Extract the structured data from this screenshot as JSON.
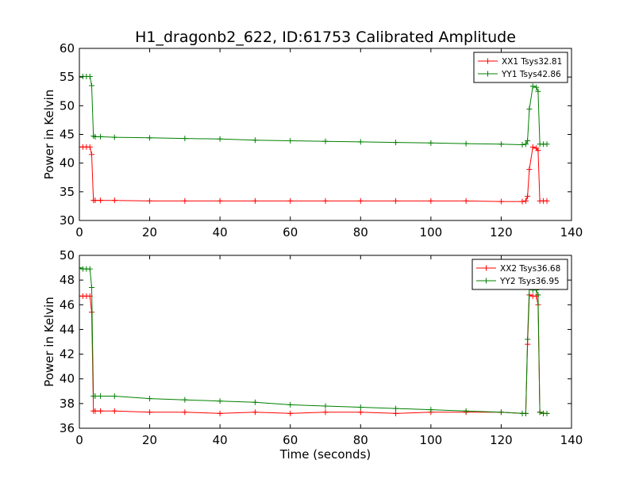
{
  "figure": {
    "title": "H1_dragonb2_622, ID:61753 Calibrated Amplitude"
  },
  "chart_data": [
    {
      "type": "line",
      "title": "H1_dragonb2_622, ID:61753 Calibrated Amplitude",
      "xlabel": "",
      "ylabel": "Power in Kelvin",
      "xlim": [
        0,
        140
      ],
      "ylim": [
        30,
        60
      ],
      "xticks": [
        0,
        20,
        40,
        60,
        80,
        100,
        120,
        140
      ],
      "yticks": [
        30,
        35,
        40,
        45,
        50,
        55,
        60
      ],
      "grid": false,
      "legend_position": "top-right",
      "series": [
        {
          "name": "XX1 Tsys32.81",
          "color": "#ff0000",
          "marker": "plus",
          "x": [
            0,
            1,
            2,
            3,
            3.5,
            4,
            4.5,
            6,
            10,
            20,
            30,
            40,
            50,
            60,
            70,
            80,
            90,
            100,
            110,
            120,
            126,
            127,
            127.5,
            128,
            129,
            130,
            130.5,
            131,
            132,
            133
          ],
          "y": [
            42.8,
            42.8,
            42.8,
            42.8,
            41.5,
            33.5,
            33.5,
            33.5,
            33.5,
            33.4,
            33.4,
            33.4,
            33.4,
            33.4,
            33.4,
            33.4,
            33.4,
            33.4,
            33.4,
            33.3,
            33.3,
            33.4,
            34.2,
            38.9,
            42.8,
            42.6,
            42.2,
            33.4,
            33.4,
            33.4
          ]
        },
        {
          "name": "YY1 Tsys42.86",
          "color": "#008000",
          "marker": "plus",
          "x": [
            0,
            1,
            2,
            3,
            3.5,
            4,
            4.5,
            6,
            10,
            20,
            30,
            40,
            50,
            60,
            70,
            80,
            90,
            100,
            110,
            120,
            126,
            127,
            127.5,
            128,
            129,
            130,
            130.5,
            131,
            132,
            133
          ],
          "y": [
            55.1,
            55.1,
            55.1,
            55.1,
            53.5,
            44.7,
            44.6,
            44.6,
            44.5,
            44.4,
            44.3,
            44.2,
            44.0,
            43.9,
            43.8,
            43.7,
            43.6,
            43.5,
            43.4,
            43.3,
            43.2,
            43.3,
            43.9,
            49.4,
            53.4,
            53.2,
            52.5,
            43.3,
            43.3,
            43.3
          ]
        }
      ]
    },
    {
      "type": "line",
      "title": "",
      "xlabel": "Time (seconds)",
      "ylabel": "Power in Kelvin",
      "xlim": [
        0,
        140
      ],
      "ylim": [
        36,
        50
      ],
      "xticks": [
        0,
        20,
        40,
        60,
        80,
        100,
        120,
        140
      ],
      "yticks": [
        36,
        38,
        40,
        42,
        44,
        46,
        48,
        50
      ],
      "grid": false,
      "legend_position": "top-right",
      "series": [
        {
          "name": "XX2 Tsys36.68",
          "color": "#ff0000",
          "marker": "plus",
          "x": [
            0,
            1,
            2,
            3,
            3.5,
            4,
            4.5,
            6,
            10,
            20,
            30,
            40,
            50,
            60,
            70,
            80,
            90,
            100,
            110,
            120,
            126,
            127,
            127.5,
            128,
            129,
            130,
            130.5,
            131,
            132,
            133
          ],
          "y": [
            46.7,
            46.7,
            46.7,
            46.7,
            45.4,
            37.4,
            37.4,
            37.4,
            37.4,
            37.3,
            37.3,
            37.2,
            37.3,
            37.2,
            37.3,
            37.3,
            37.2,
            37.3,
            37.3,
            37.3,
            37.2,
            37.2,
            42.8,
            46.8,
            46.7,
            46.7,
            46.0,
            37.3,
            37.2,
            37.2
          ]
        },
        {
          "name": "YY2 Tsys36.95",
          "color": "#008000",
          "marker": "plus",
          "x": [
            0,
            1,
            2,
            3,
            3.5,
            4,
            4.5,
            6,
            10,
            20,
            30,
            40,
            50,
            60,
            70,
            80,
            90,
            100,
            110,
            120,
            126,
            127,
            127.5,
            128,
            129,
            130,
            130.5,
            131,
            132,
            133
          ],
          "y": [
            49.0,
            48.9,
            48.9,
            48.9,
            47.4,
            38.6,
            38.6,
            38.6,
            38.6,
            38.4,
            38.3,
            38.2,
            38.1,
            37.9,
            37.8,
            37.7,
            37.6,
            37.5,
            37.4,
            37.3,
            37.2,
            37.2,
            43.2,
            47.4,
            47.2,
            47.2,
            46.8,
            37.3,
            37.2,
            37.2
          ]
        }
      ]
    }
  ]
}
